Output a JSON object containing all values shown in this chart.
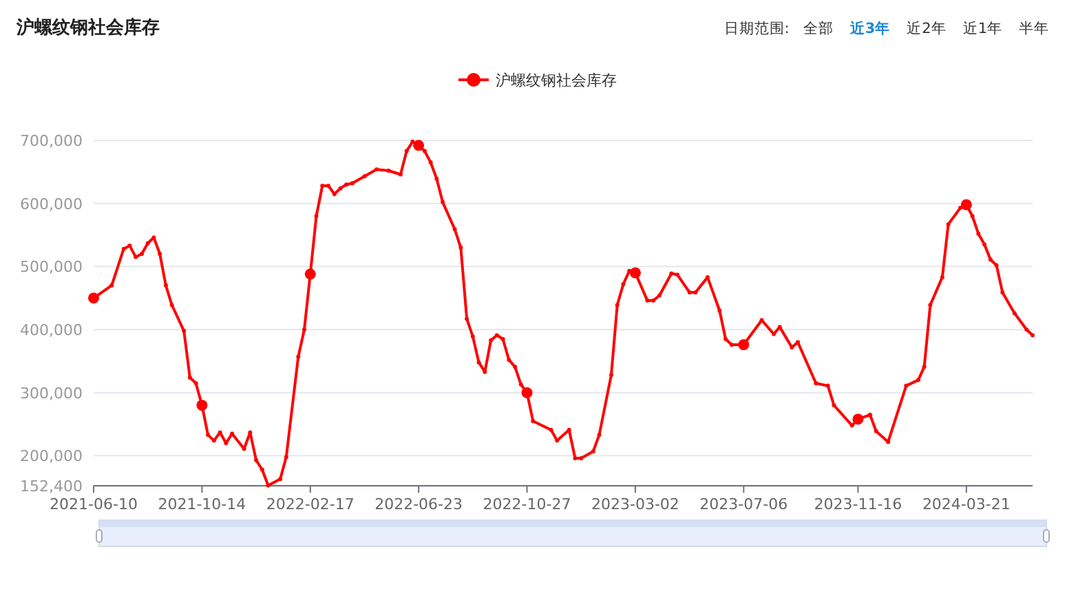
{
  "chart_data": {
    "type": "line",
    "title": "沪螺纹钢社会库存",
    "annotations": [
      "日期范围:",
      "全部",
      "近3年",
      "近2年",
      "近1年",
      "半年"
    ],
    "x": [
      "2021-06-10",
      "2021-07-01",
      "2021-07-15",
      "2021-07-22",
      "2021-07-29",
      "2021-08-05",
      "2021-08-12",
      "2021-08-19",
      "2021-08-26",
      "2021-09-02",
      "2021-09-09",
      "2021-09-23",
      "2021-09-30",
      "2021-10-07",
      "2021-10-14",
      "2021-10-21",
      "2021-10-28",
      "2021-11-04",
      "2021-11-11",
      "2021-11-18",
      "2021-12-02",
      "2021-12-09",
      "2021-12-16",
      "2021-12-23",
      "2021-12-30",
      "2022-01-13",
      "2022-01-20",
      "2022-02-03",
      "2022-02-10",
      "2022-02-17",
      "2022-02-24",
      "2022-03-03",
      "2022-03-10",
      "2022-03-17",
      "2022-03-24",
      "2022-03-31",
      "2022-04-07",
      "2022-04-21",
      "2022-05-05",
      "2022-05-19",
      "2022-06-02",
      "2022-06-09",
      "2022-06-16",
      "2022-06-23",
      "2022-06-30",
      "2022-07-07",
      "2022-07-14",
      "2022-07-21",
      "2022-08-04",
      "2022-08-11",
      "2022-08-18",
      "2022-08-25",
      "2022-09-01",
      "2022-09-08",
      "2022-09-15",
      "2022-09-22",
      "2022-09-29",
      "2022-10-06",
      "2022-10-13",
      "2022-10-20",
      "2022-10-27",
      "2022-11-03",
      "2022-11-24",
      "2022-12-01",
      "2022-12-15",
      "2022-12-22",
      "2022-12-29",
      "2023-01-12",
      "2023-01-19",
      "2023-02-02",
      "2023-02-09",
      "2023-02-16",
      "2023-02-23",
      "2023-03-02",
      "2023-03-16",
      "2023-03-23",
      "2023-03-30",
      "2023-04-13",
      "2023-04-20",
      "2023-05-04",
      "2023-05-11",
      "2023-05-25",
      "2023-06-08",
      "2023-06-15",
      "2023-06-22",
      "2023-07-06",
      "2023-07-27",
      "2023-08-10",
      "2023-08-17",
      "2023-08-31",
      "2023-09-07",
      "2023-09-28",
      "2023-10-12",
      "2023-10-19",
      "2023-11-09",
      "2023-11-16",
      "2023-11-30",
      "2023-12-07",
      "2023-12-21",
      "2024-01-11",
      "2024-01-25",
      "2024-02-01",
      "2024-02-08",
      "2024-02-22",
      "2024-02-29",
      "2024-03-14",
      "2024-03-21",
      "2024-03-28",
      "2024-04-04",
      "2024-04-11",
      "2024-04-18",
      "2024-04-25",
      "2024-05-02",
      "2024-05-16",
      "2024-05-30",
      "2024-06-06"
    ],
    "series": [
      {
        "name": "沪螺纹钢社会库存",
        "color": "#ff0000",
        "values": [
          450000,
          470000,
          528000,
          533000,
          515000,
          520000,
          537000,
          546000,
          520000,
          470000,
          439000,
          398000,
          324000,
          315000,
          280000,
          233000,
          224000,
          237000,
          220000,
          235000,
          211000,
          237000,
          193000,
          178000,
          153000,
          163000,
          198000,
          357000,
          400000,
          488000,
          580000,
          628000,
          628000,
          615000,
          624000,
          630000,
          632000,
          643000,
          654000,
          652000,
          646000,
          683000,
          698000,
          692000,
          683000,
          665000,
          639000,
          602000,
          559000,
          530000,
          417000,
          389000,
          348000,
          333000,
          383000,
          391000,
          385000,
          352000,
          341000,
          313000,
          300000,
          255000,
          241000,
          224000,
          241000,
          196000,
          196000,
          207000,
          233000,
          328000,
          439000,
          472000,
          493000,
          490000,
          446000,
          446000,
          454000,
          489000,
          487000,
          459000,
          459000,
          483000,
          430000,
          385000,
          376000,
          376000,
          415000,
          393000,
          404000,
          372000,
          380000,
          315000,
          311000,
          280000,
          248000,
          258000,
          265000,
          239000,
          222000,
          311000,
          320000,
          341000,
          439000,
          483000,
          567000,
          593000,
          598000,
          580000,
          552000,
          535000,
          511000,
          502000,
          459000,
          426000,
          400000,
          391000
        ]
      }
    ],
    "xlim": [
      "2021-06-10",
      "2024-06-06"
    ],
    "xticks": [
      "2021-06-10",
      "2021-10-14",
      "2022-02-17",
      "2022-06-23",
      "2022-10-27",
      "2023-03-02",
      "2023-07-06",
      "2023-11-16",
      "2024-03-21"
    ],
    "ylim": [
      152400,
      700000
    ],
    "yticks": [
      {
        "value": 152400,
        "label": "152,400"
      },
      {
        "value": 200000,
        "label": "200,000"
      },
      {
        "value": 300000,
        "label": "300,000"
      },
      {
        "value": 400000,
        "label": "400,000"
      },
      {
        "value": 500000,
        "label": "500,000"
      },
      {
        "value": 600000,
        "label": "600,000"
      },
      {
        "value": 700000,
        "label": "700,000"
      }
    ],
    "grid": "y",
    "legend": "top",
    "marker": "circle",
    "line_style": "solid"
  }
}
